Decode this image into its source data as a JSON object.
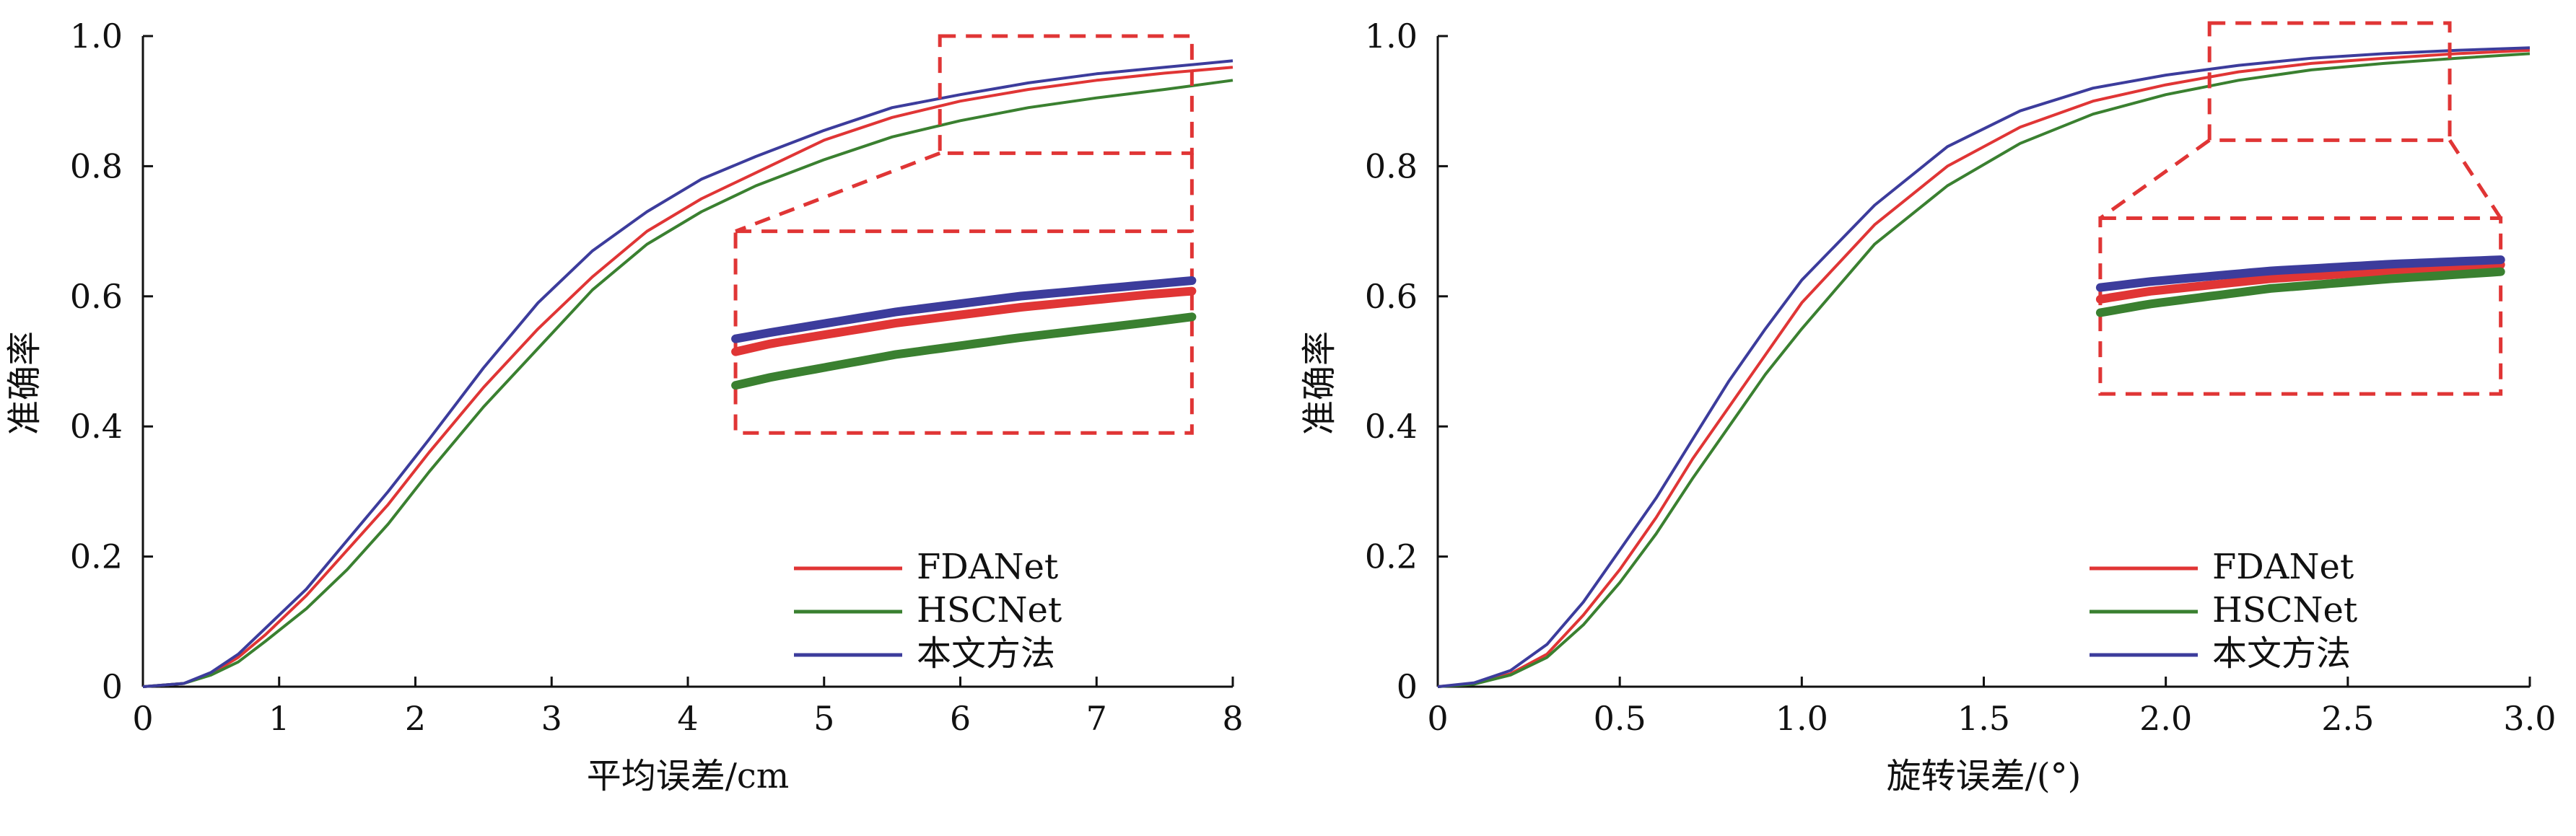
{
  "chart_data": [
    {
      "type": "line",
      "title": "",
      "xlabel": "平均误差/cm",
      "ylabel": "准确率",
      "xlim": [
        0,
        8
      ],
      "ylim": [
        0,
        1.0
      ],
      "x_ticks": [
        "0",
        "1",
        "2",
        "3",
        "4",
        "5",
        "6",
        "7",
        "8"
      ],
      "y_ticks": [
        "0",
        "0.2",
        "0.4",
        "0.6",
        "0.8",
        "1.0"
      ],
      "grid": false,
      "legend": "bottom-right",
      "x": [
        0,
        0.3,
        0.5,
        0.7,
        0.9,
        1.2,
        1.5,
        1.8,
        2.1,
        2.5,
        2.9,
        3.3,
        3.7,
        4.1,
        4.5,
        5.0,
        5.5,
        6.0,
        6.5,
        7.0,
        7.5,
        8.0
      ],
      "series": [
        {
          "name": "FDANet",
          "color": "#e03535",
          "values": [
            0,
            0.005,
            0.02,
            0.045,
            0.08,
            0.14,
            0.21,
            0.28,
            0.36,
            0.46,
            0.55,
            0.63,
            0.7,
            0.75,
            0.79,
            0.84,
            0.875,
            0.9,
            0.918,
            0.932,
            0.943,
            0.952
          ]
        },
        {
          "name": "HSCNet",
          "color": "#3a8030",
          "values": [
            0,
            0.005,
            0.018,
            0.038,
            0.07,
            0.12,
            0.18,
            0.25,
            0.33,
            0.43,
            0.52,
            0.61,
            0.68,
            0.73,
            0.77,
            0.81,
            0.845,
            0.87,
            0.89,
            0.905,
            0.918,
            0.932
          ]
        },
        {
          "name": "本文方法",
          "color": "#3c3c9c",
          "values": [
            0,
            0.005,
            0.022,
            0.05,
            0.09,
            0.15,
            0.225,
            0.3,
            0.38,
            0.49,
            0.59,
            0.67,
            0.73,
            0.78,
            0.815,
            0.855,
            0.89,
            0.91,
            0.928,
            0.942,
            0.952,
            0.962
          ]
        }
      ],
      "inset": {
        "source_region": {
          "x": [
            5.85,
            7.7
          ],
          "y": [
            0.82,
            1.0
          ]
        },
        "display_region": {
          "x": [
            4.35,
            7.7
          ],
          "y": [
            0.39,
            0.7
          ]
        }
      }
    },
    {
      "type": "line",
      "title": "",
      "xlabel": "旋转误差/(°)",
      "ylabel": "准确率",
      "xlim": [
        0,
        3.0
      ],
      "ylim": [
        0,
        1.0
      ],
      "x_ticks": [
        "0",
        "0.5",
        "1.0",
        "1.5",
        "2.0",
        "2.5",
        "3.0"
      ],
      "y_ticks": [
        "0",
        "0.2",
        "0.4",
        "0.6",
        "0.8",
        "1.0"
      ],
      "grid": false,
      "legend": "bottom-right",
      "x": [
        0,
        0.1,
        0.2,
        0.3,
        0.4,
        0.5,
        0.6,
        0.7,
        0.8,
        0.9,
        1.0,
        1.2,
        1.4,
        1.6,
        1.8,
        2.0,
        2.2,
        2.4,
        2.6,
        2.8,
        3.0
      ],
      "series": [
        {
          "name": "FDANet",
          "color": "#e03535",
          "values": [
            0,
            0.005,
            0.02,
            0.05,
            0.11,
            0.18,
            0.26,
            0.35,
            0.43,
            0.51,
            0.59,
            0.71,
            0.8,
            0.86,
            0.9,
            0.925,
            0.945,
            0.958,
            0.966,
            0.973,
            0.978
          ]
        },
        {
          "name": "HSCNet",
          "color": "#3a8030",
          "values": [
            0,
            0.004,
            0.018,
            0.045,
            0.095,
            0.16,
            0.235,
            0.32,
            0.4,
            0.48,
            0.55,
            0.68,
            0.77,
            0.835,
            0.88,
            0.91,
            0.932,
            0.948,
            0.958,
            0.966,
            0.973
          ]
        },
        {
          "name": "本文方法",
          "color": "#3c3c9c",
          "values": [
            0,
            0.006,
            0.025,
            0.065,
            0.13,
            0.21,
            0.29,
            0.38,
            0.47,
            0.55,
            0.625,
            0.74,
            0.83,
            0.885,
            0.92,
            0.94,
            0.955,
            0.966,
            0.973,
            0.978,
            0.982
          ]
        }
      ],
      "inset": {
        "source_region": {
          "x": [
            2.12,
            2.78
          ],
          "y": [
            0.84,
            1.02
          ]
        },
        "display_region": {
          "x": [
            1.82,
            2.92
          ],
          "y": [
            0.45,
            0.72
          ]
        }
      }
    }
  ]
}
